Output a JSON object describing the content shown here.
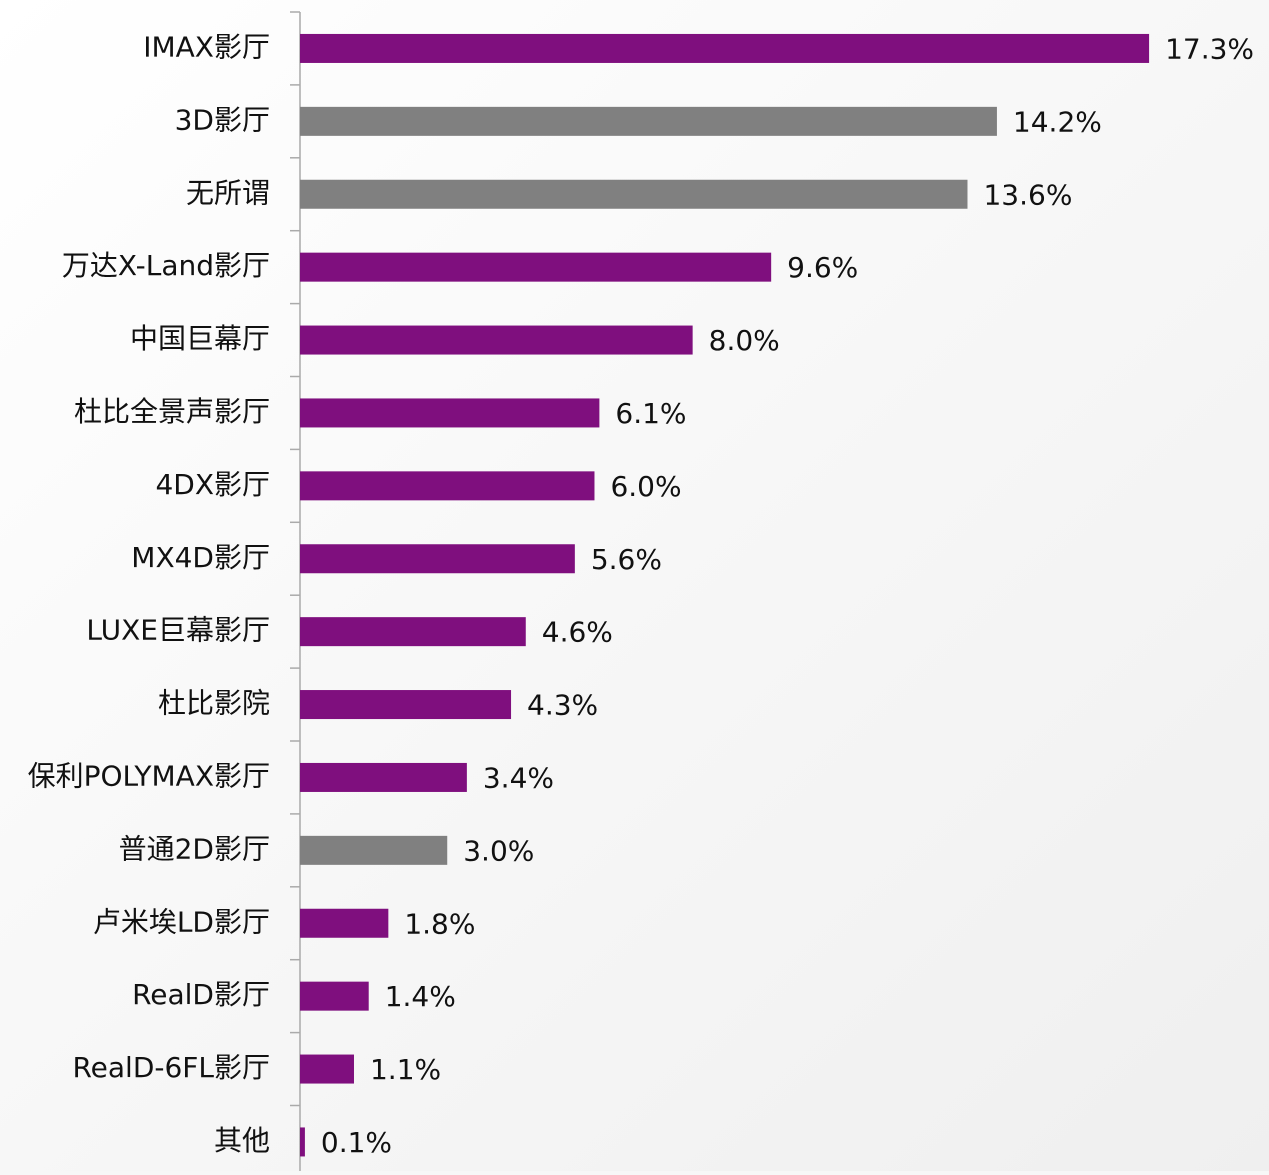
{
  "chart_data": {
    "type": "bar",
    "orientation": "horizontal",
    "categories": [
      "IMAX影厅",
      "3D影厅",
      "无所谓",
      "万达X-Land影厅",
      "中国巨幕厅",
      "杜比全景声影厅",
      "4DX影厅",
      "MX4D影厅",
      "LUXE巨幕影厅",
      "杜比影院",
      "保利POLYMAX影厅",
      "普通2D影厅",
      "卢米埃LD影厅",
      "RealD影厅",
      "RealD-6FL影厅",
      "其他"
    ],
    "values": [
      17.3,
      14.2,
      13.6,
      9.6,
      8.0,
      6.1,
      6.0,
      5.6,
      4.6,
      4.3,
      3.4,
      3.0,
      1.8,
      1.4,
      1.1,
      0.1
    ],
    "value_labels": [
      "17.3%",
      "14.2%",
      "13.6%",
      "9.6%",
      "8.0%",
      "6.1%",
      "6.0%",
      "5.6%",
      "4.6%",
      "4.3%",
      "3.4%",
      "3.0%",
      "1.8%",
      "1.4%",
      "1.1%",
      "0.1%"
    ],
    "colors": [
      "#7f0f7e",
      "#808080",
      "#808080",
      "#7f0f7e",
      "#7f0f7e",
      "#7f0f7e",
      "#7f0f7e",
      "#7f0f7e",
      "#7f0f7e",
      "#7f0f7e",
      "#7f0f7e",
      "#808080",
      "#7f0f7e",
      "#7f0f7e",
      "#7f0f7e",
      "#7f0f7e"
    ]
  }
}
